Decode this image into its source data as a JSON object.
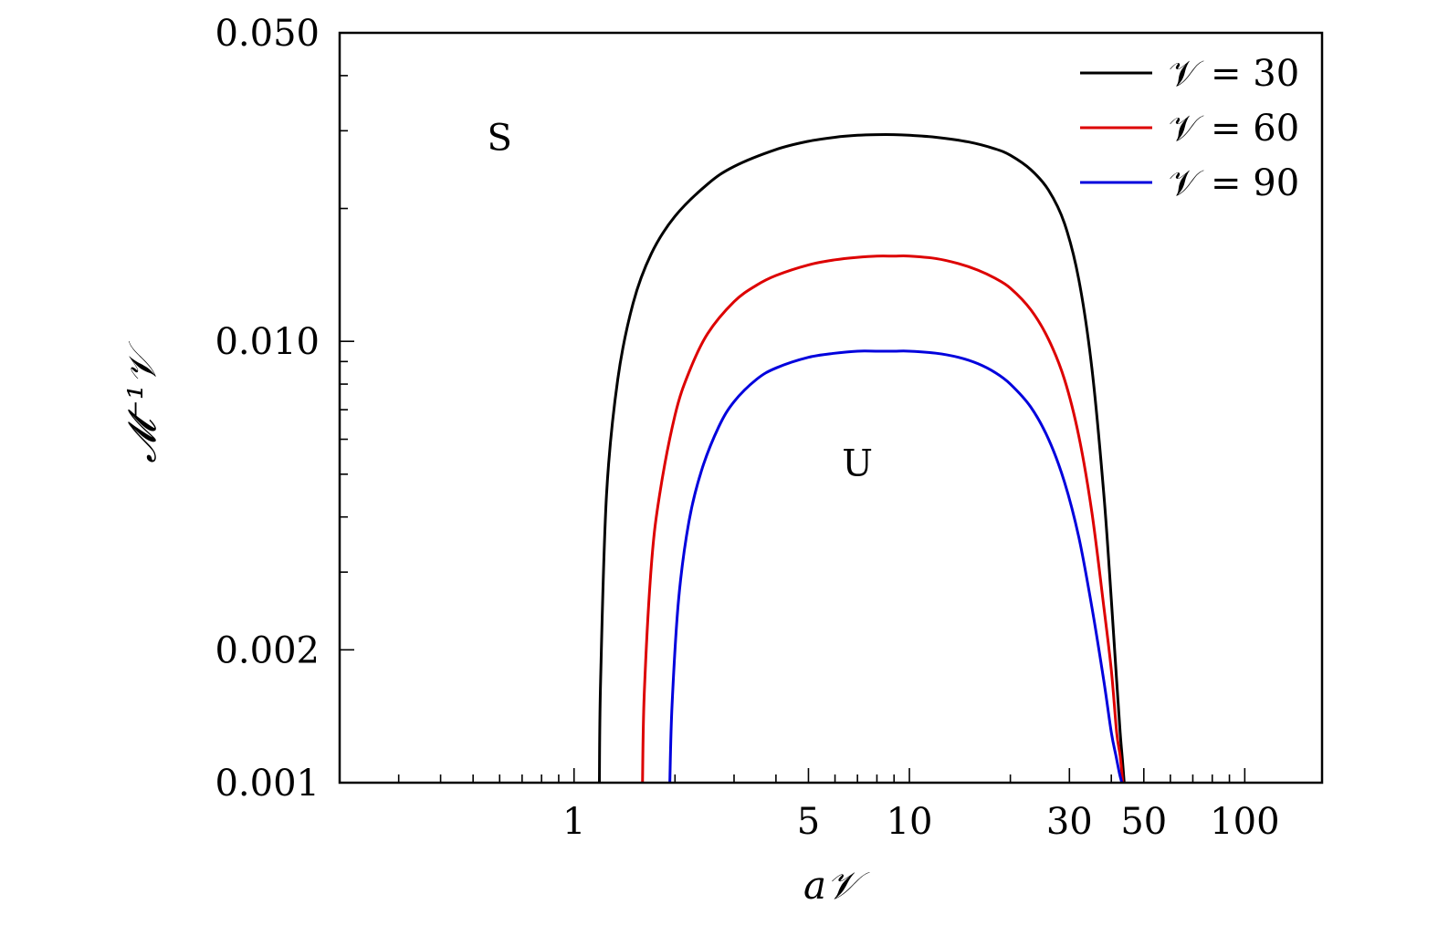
{
  "chart_data": {
    "type": "line",
    "title": "",
    "xlabel": "a𝒱",
    "ylabel": "𝓜⁻¹𝒱",
    "x_scale": "log",
    "y_scale": "log",
    "xlim": [
      0.2,
      170
    ],
    "ylim": [
      0.001,
      0.05
    ],
    "x_ticks": [
      {
        "value": 1,
        "label": "1"
      },
      {
        "value": 5,
        "label": "5"
      },
      {
        "value": 10,
        "label": "10"
      },
      {
        "value": 30,
        "label": "30"
      },
      {
        "value": 50,
        "label": "50"
      },
      {
        "value": 100,
        "label": "100"
      }
    ],
    "y_ticks": [
      {
        "value": 0.05,
        "label": "0.050"
      },
      {
        "value": 0.01,
        "label": "0.010"
      },
      {
        "value": 0.002,
        "label": "0.002"
      },
      {
        "value": 0.001,
        "label": "0.001"
      }
    ],
    "grid": false,
    "legend_position": "top-right",
    "annotations": [
      {
        "text": "S",
        "x": 0.6,
        "y": 0.029
      },
      {
        "text": "U",
        "x": 7.0,
        "y": 0.0053
      }
    ],
    "series": [
      {
        "name": "𝒱 = 30",
        "color": "#000000",
        "x": [
          1.19,
          1.2,
          1.25,
          1.35,
          1.5,
          1.7,
          2.0,
          2.5,
          3.0,
          4.0,
          5.0,
          6.0,
          7.0,
          8.0,
          9.0,
          10.0,
          12.0,
          15.0,
          18.0,
          20.0,
          23.0,
          26.0,
          29.0,
          32.0,
          35.0,
          38.0,
          40.0,
          41.5,
          42.5,
          43.2,
          43.7
        ],
        "y": [
          0.001,
          0.0017,
          0.0045,
          0.0082,
          0.0122,
          0.0158,
          0.0192,
          0.0227,
          0.0249,
          0.0272,
          0.0284,
          0.029,
          0.0293,
          0.0294,
          0.0294,
          0.0293,
          0.029,
          0.0283,
          0.0273,
          0.0264,
          0.0245,
          0.022,
          0.0185,
          0.0138,
          0.0087,
          0.0045,
          0.0026,
          0.0017,
          0.0013,
          0.00112,
          0.001
        ]
      },
      {
        "name": "𝒱 = 60",
        "color": "#dd0000",
        "x": [
          1.6,
          1.62,
          1.7,
          1.8,
          2.0,
          2.2,
          2.5,
          3.0,
          3.5,
          4.0,
          5.0,
          6.0,
          7.0,
          8.0,
          9.0,
          10.0,
          12.0,
          14.0,
          16.0,
          18.0,
          20.0,
          23.0,
          26.0,
          29.0,
          32.0,
          35.0,
          38.0,
          40.0,
          41.5,
          42.5,
          43.3
        ],
        "y": [
          0.001,
          0.0016,
          0.0031,
          0.0045,
          0.0068,
          0.0085,
          0.0104,
          0.0123,
          0.0134,
          0.0141,
          0.0149,
          0.0153,
          0.0155,
          0.0156,
          0.0156,
          0.0156,
          0.0154,
          0.015,
          0.0145,
          0.0139,
          0.0132,
          0.0118,
          0.0101,
          0.0082,
          0.0061,
          0.0041,
          0.0025,
          0.0018,
          0.0013,
          0.00115,
          0.001
        ]
      },
      {
        "name": "𝒱 = 90",
        "color": "#0000dd",
        "x": [
          1.93,
          1.96,
          2.05,
          2.2,
          2.4,
          2.7,
          3.0,
          3.5,
          4.0,
          5.0,
          6.0,
          7.0,
          8.0,
          9.0,
          10.0,
          12.0,
          14.0,
          16.0,
          18.0,
          20.0,
          23.0,
          26.0,
          29.0,
          32.0,
          35.0,
          38.0,
          40.0,
          41.3,
          42.3,
          43.0
        ],
        "y": [
          0.001,
          0.0015,
          0.0026,
          0.0039,
          0.0051,
          0.0064,
          0.0073,
          0.0082,
          0.0087,
          0.0092,
          0.0094,
          0.0095,
          0.0095,
          0.0095,
          0.0095,
          0.0094,
          0.0092,
          0.0089,
          0.0085,
          0.008,
          0.0071,
          0.006,
          0.0048,
          0.0036,
          0.0025,
          0.0017,
          0.0013,
          0.00115,
          0.00105,
          0.001
        ]
      }
    ]
  }
}
